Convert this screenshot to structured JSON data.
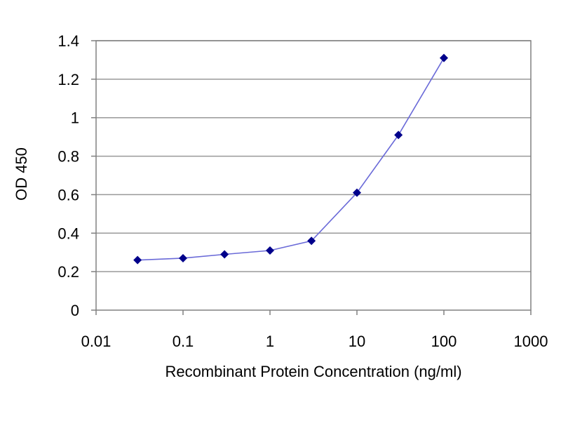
{
  "chart_data": {
    "type": "line",
    "title": "",
    "xlabel": "Recombinant Protein Concentration (ng/ml)",
    "ylabel": "OD 450",
    "x_scale": "log",
    "xlim": [
      0.01,
      1000
    ],
    "ylim": [
      0,
      1.4
    ],
    "x_ticks": [
      0.01,
      0.1,
      1,
      10,
      100,
      1000
    ],
    "x_tick_labels": [
      "0.01",
      "0.1",
      "1",
      "10",
      "100",
      "1000"
    ],
    "y_ticks": [
      0,
      0.2,
      0.4,
      0.6,
      0.8,
      1,
      1.2,
      1.4
    ],
    "y_tick_labels": [
      "0",
      "0.2",
      "0.4",
      "0.6",
      "0.8",
      "1",
      "1.2",
      "1.4"
    ],
    "grid": "horizontal",
    "legend": "none",
    "series": [
      {
        "x": [
          0.03,
          0.1,
          0.3,
          1,
          3,
          10,
          30,
          100
        ],
        "y": [
          0.26,
          0.27,
          0.29,
          0.31,
          0.36,
          0.61,
          0.91,
          1.31
        ],
        "color": "#00008B",
        "line_color": "#6A6AD8"
      }
    ],
    "plot_background": "#ffffff",
    "grid_color": "#999999",
    "frame_color": "#808080"
  }
}
